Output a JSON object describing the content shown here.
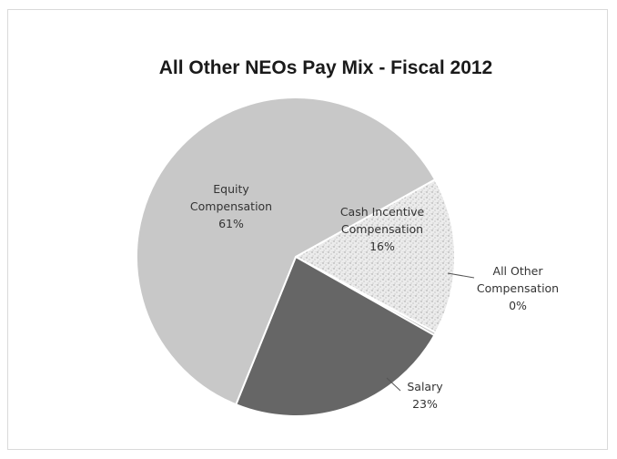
{
  "chart_data": {
    "type": "pie",
    "title": "All Other NEOs Pay Mix - Fiscal 2012",
    "slices": [
      {
        "label_lines": [
          "Cash Incentive",
          "Compensation",
          "16%"
        ],
        "value": 16,
        "color": "#e6e6e6",
        "pattern": "speckle"
      },
      {
        "label_lines": [
          "All Other",
          "Compensation",
          "0%"
        ],
        "value": 0.3,
        "color": "#bdbdbd"
      },
      {
        "label_lines": [
          "Salary",
          "23%"
        ],
        "value": 23,
        "color": "#666666"
      },
      {
        "label_lines": [
          "Equity",
          "Compensation",
          "61%"
        ],
        "value": 61,
        "color": "#c8c8c8"
      }
    ],
    "legend": "none"
  }
}
